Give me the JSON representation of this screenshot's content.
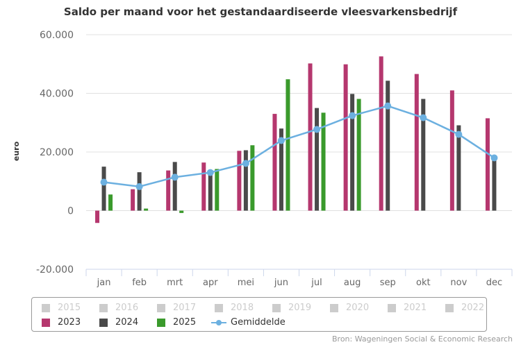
{
  "chart_data": {
    "type": "bar",
    "title": "Saldo per maand voor het gestandaardiseerde vleesvarkensbedrijf",
    "xlabel": "",
    "ylabel": "euro",
    "ylim": [
      -20000,
      60000
    ],
    "yticks": [
      60000,
      40000,
      20000,
      0,
      -20000
    ],
    "ytick_labels": [
      "60.000",
      "40.000",
      "20.000",
      "0",
      "-20.000"
    ],
    "grid": true,
    "categories": [
      "jan",
      "feb",
      "mrt",
      "apr",
      "mei",
      "jun",
      "jul",
      "aug",
      "sep",
      "okt",
      "nov",
      "dec"
    ],
    "series": [
      {
        "name": "2023",
        "type": "bar",
        "color": "#b5376e",
        "values": [
          -4200,
          7300,
          13700,
          16400,
          20400,
          33000,
          50200,
          49900,
          52600,
          46600,
          41000,
          31500
        ]
      },
      {
        "name": "2024",
        "type": "bar",
        "color": "#4a4a4a",
        "values": [
          15000,
          13100,
          16600,
          13500,
          20600,
          28000,
          35000,
          39800,
          44300,
          38100,
          29100,
          17800
        ]
      },
      {
        "name": "2025",
        "type": "bar",
        "color": "#3a9a2c",
        "values": [
          5500,
          700,
          -800,
          14200,
          22300,
          44800,
          33400,
          38100,
          null,
          null,
          null,
          null
        ]
      },
      {
        "name": "Gemiddelde",
        "type": "line",
        "color": "#6cb0e0",
        "values": [
          9700,
          8200,
          11400,
          13000,
          16100,
          23900,
          27700,
          32400,
          35700,
          31700,
          26000,
          18000
        ]
      }
    ],
    "legend_position": "bottom",
    "legend": {
      "hidden": [
        "2015",
        "2016",
        "2017",
        "2018",
        "2019",
        "2020",
        "2021",
        "2022"
      ],
      "visible": [
        "2023",
        "2024",
        "2025",
        "Gemiddelde"
      ]
    },
    "source": "Bron: Wageningen Social & Economic Research"
  }
}
